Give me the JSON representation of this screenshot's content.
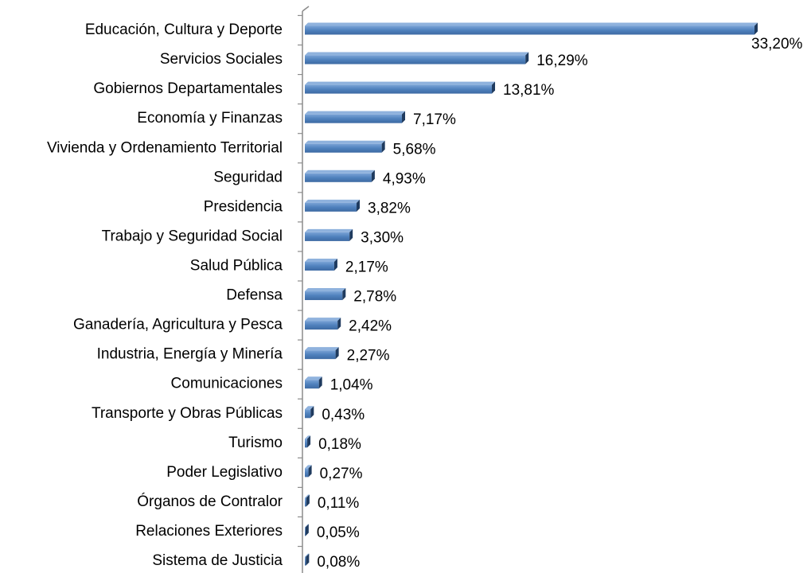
{
  "chart_data": {
    "type": "bar",
    "orientation": "horizontal",
    "color": "#4f81bd",
    "categories": [
      "Educación, Cultura y Deporte",
      "Servicios Sociales",
      "Gobiernos Departamentales",
      "Economía y Finanzas",
      "Vivienda y Ordenamiento Territorial",
      "Seguridad",
      "Presidencia",
      "Trabajo y Seguridad Social",
      "Salud Pública",
      "Defensa",
      "Ganadería, Agricultura y Pesca",
      "Industria, Energía y Minería",
      "Comunicaciones",
      "Transporte y Obras Públicas",
      "Turismo",
      "Poder Legislativo",
      "Órganos de Contralor",
      "Relaciones Exteriores",
      "Sistema de Justicia"
    ],
    "values": [
      33.2,
      16.29,
      13.81,
      7.17,
      5.68,
      4.93,
      3.82,
      3.3,
      2.17,
      2.78,
      2.42,
      2.27,
      1.04,
      0.43,
      0.18,
      0.27,
      0.11,
      0.05,
      0.08
    ],
    "value_labels": [
      "33,20%",
      "16,29%",
      "13,81%",
      "7,17%",
      "5,68%",
      "4,93%",
      "3,82%",
      "3,30%",
      "2,17%",
      "2,78%",
      "2,42%",
      "2,27%",
      "1,04%",
      "0,43%",
      "0,18%",
      "0,27%",
      "0,11%",
      "0,05%",
      "0,08%"
    ]
  }
}
